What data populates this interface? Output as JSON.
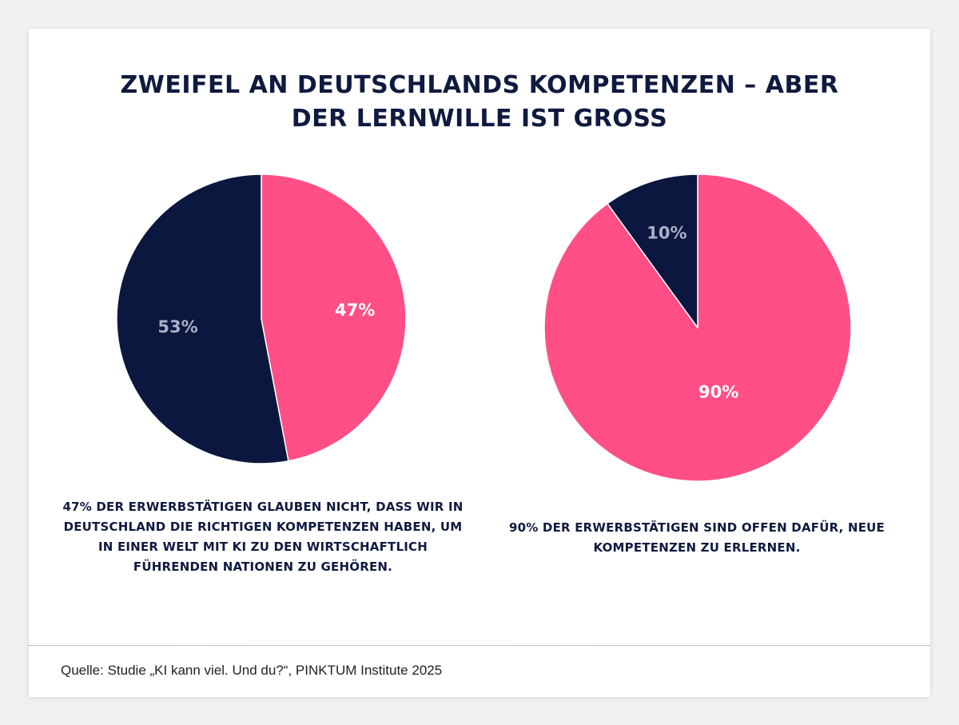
{
  "title": {
    "line1": "ZWEIFEL AN DEUTSCHLANDS KOMPETENZEN – ABER",
    "line2": "DER LERNWILLE IST GROSS"
  },
  "colors": {
    "pink": "#ff4f86",
    "navy": "#0c1740",
    "label_light": "#ffffff",
    "label_muted": "#aab0c4"
  },
  "chart_data": [
    {
      "type": "pie",
      "slices": [
        {
          "value": 47,
          "label": "47%",
          "color": "#ff4f86",
          "label_color": "#ffffff"
        },
        {
          "value": 53,
          "label": "53%",
          "color": "#0c1740",
          "label_color": "#aab0c4"
        }
      ],
      "caption": "47% der Erwerbstätigen glauben nicht, dass wir in Deutschland die richtigen Kompetenzen haben, um in einer Welt mit KI zu den wirtschaftlich führenden Nationen zu gehören."
    },
    {
      "type": "pie",
      "slices": [
        {
          "value": 90,
          "label": "90%",
          "color": "#ff4f86",
          "label_color": "#ffffff"
        },
        {
          "value": 10,
          "label": "10%",
          "color": "#0c1740",
          "label_color": "#aab0c4"
        }
      ],
      "caption": "90% der Erwerbstätigen sind offen dafür, neue Kompetenzen zu erlernen."
    }
  ],
  "source": "Quelle: Studie „KI kann viel. Und du?“, PINKTUM Institute 2025"
}
